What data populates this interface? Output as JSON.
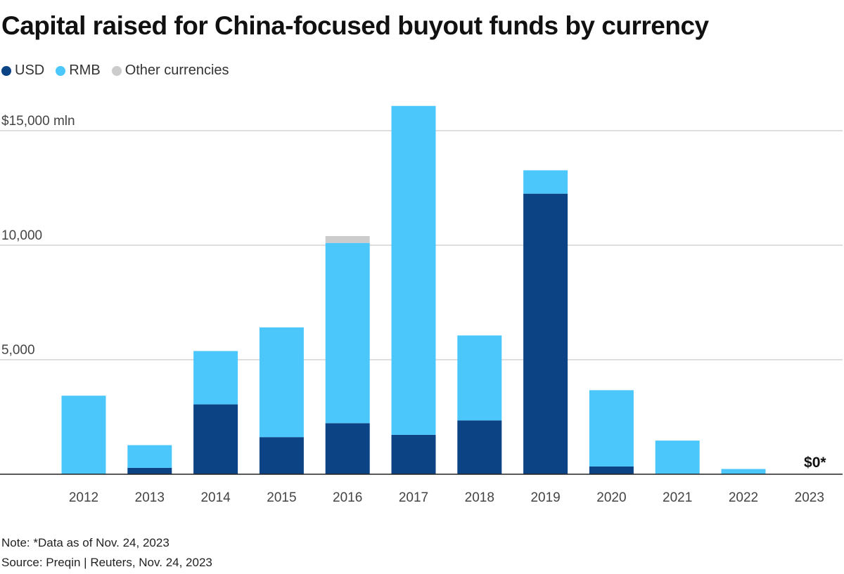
{
  "title": "Capital raised for China-focused buyout funds by currency",
  "legend": [
    {
      "label": "USD",
      "color": "#0b4384"
    },
    {
      "label": "RMB",
      "color": "#4cc7fc"
    },
    {
      "label": "Other currencies",
      "color": "#cccccc"
    }
  ],
  "chart_data": {
    "type": "bar",
    "stacked": true,
    "categories": [
      "2012",
      "2013",
      "2014",
      "2015",
      "2016",
      "2017",
      "2018",
      "2019",
      "2020",
      "2021",
      "2022",
      "2023"
    ],
    "series": [
      {
        "name": "USD",
        "color": "#0b4384",
        "values": [
          0,
          280,
          3050,
          1620,
          2230,
          1720,
          2350,
          12250,
          340,
          0,
          0,
          0
        ]
      },
      {
        "name": "RMB",
        "color": "#4cc7fc",
        "values": [
          3430,
          990,
          2330,
          4790,
          7870,
          14360,
          3710,
          1020,
          3330,
          1470,
          230,
          0
        ]
      },
      {
        "name": "Other currencies",
        "color": "#cccccc",
        "values": [
          0,
          0,
          0,
          0,
          300,
          0,
          0,
          0,
          0,
          0,
          0,
          0
        ]
      }
    ],
    "yticks": [
      {
        "value": 5000,
        "label": "5,000"
      },
      {
        "value": 10000,
        "label": "10,000"
      },
      {
        "value": 15000,
        "label": "$15,000 mln"
      }
    ],
    "ylim": [
      0,
      16500
    ],
    "annotations": [
      {
        "category": "2023",
        "text": "$0*"
      }
    ],
    "grid": true
  },
  "footer": {
    "note": "Note: *Data as of Nov. 24, 2023",
    "source": "Source: Preqin | Reuters, Nov. 24, 2023"
  }
}
